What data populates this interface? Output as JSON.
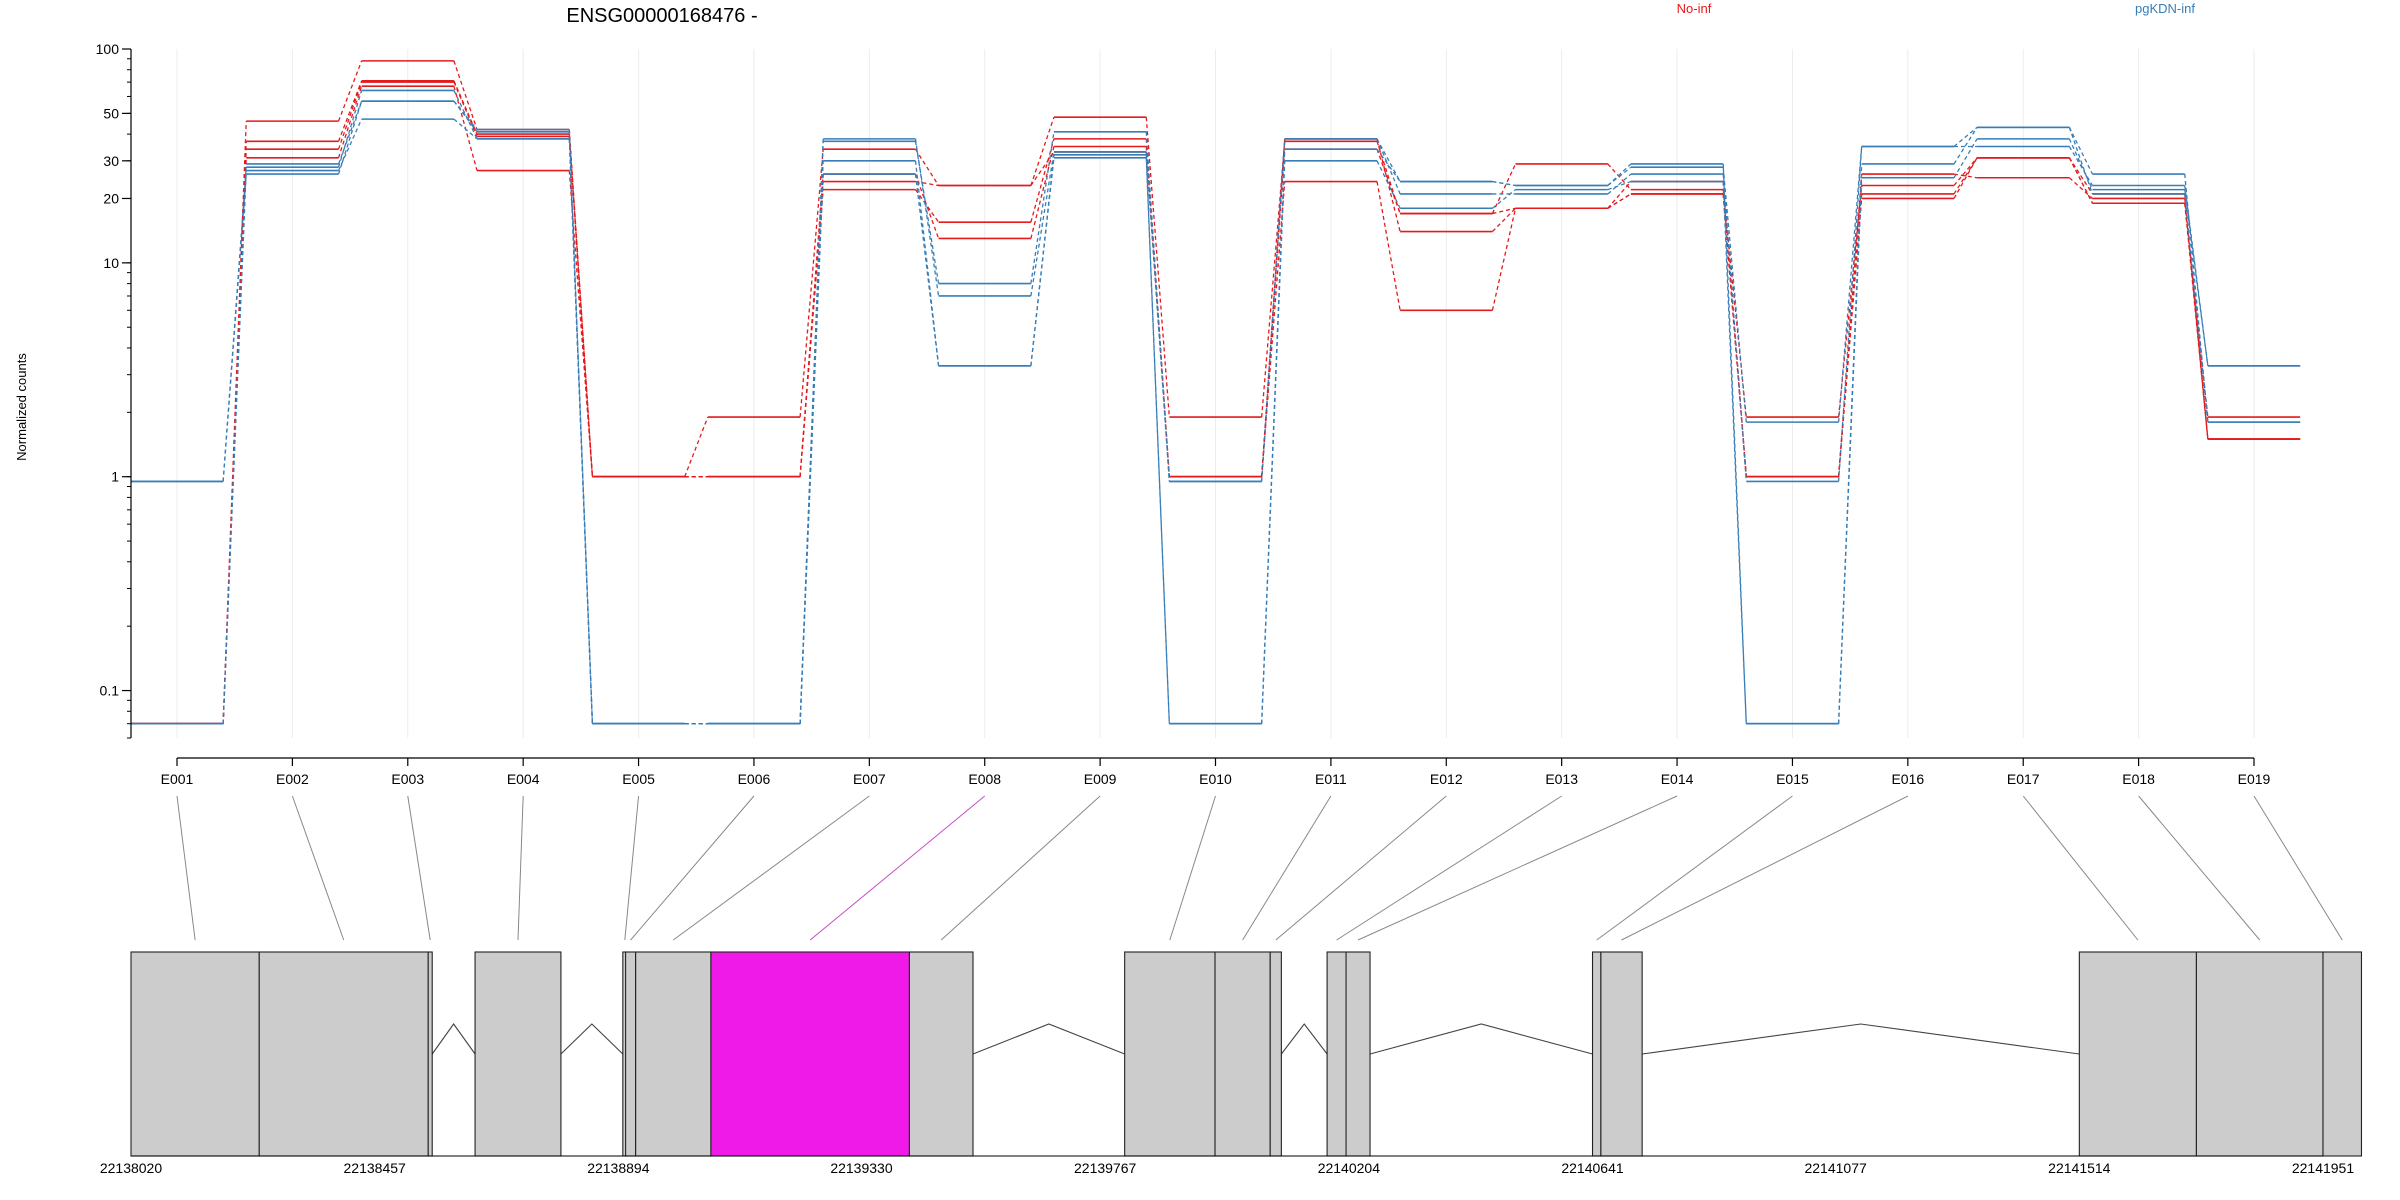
{
  "chart_data": {
    "type": "line",
    "title": "ENSG00000168476 -",
    "xlabel": "",
    "ylabel": "Normalized counts",
    "y_scale": "log",
    "ylim": [
      0.06,
      100
    ],
    "y_ticks": [
      0.1,
      1,
      10,
      20,
      30,
      50,
      100
    ],
    "y_tick_labels": [
      "0.1",
      "1",
      "10",
      "20",
      "30",
      "50",
      "100"
    ],
    "categories": [
      "E001",
      "E002",
      "E003",
      "E004",
      "E005",
      "E006",
      "E007",
      "E008",
      "E009",
      "E010",
      "E011",
      "E012",
      "E013",
      "E014",
      "E015",
      "E016",
      "E017",
      "E018",
      "E019"
    ],
    "legend": [
      {
        "name": "No-inf",
        "color": "#e41a1c"
      },
      {
        "name": "pgKDN-inf",
        "color": "#377eb8"
      }
    ],
    "legend_placement": "top-right",
    "grid": true,
    "series": [
      {
        "group": "No-inf",
        "color": "#e41a1c",
        "values": [
          0.07,
          46,
          88,
          42,
          1,
          1.9,
          34,
          23,
          48,
          1.9,
          37,
          17,
          29,
          22,
          1.9,
          23,
          31,
          19,
          1.9
        ]
      },
      {
        "group": "No-inf",
        "color": "#e41a1c",
        "values": [
          0.07,
          37,
          71,
          40,
          1,
          1,
          22,
          15.5,
          38,
          1,
          38,
          14,
          18,
          24,
          1,
          20,
          31,
          19,
          1.5
        ]
      },
      {
        "group": "No-inf",
        "color": "#e41a1c",
        "values": [
          0.07,
          34,
          70,
          39,
          1,
          1,
          26,
          13,
          35,
          1,
          24,
          6,
          18,
          21,
          1,
          26,
          25,
          20,
          1.5
        ]
      },
      {
        "group": "No-inf",
        "color": "#e41a1c",
        "values": [
          0.07,
          31,
          67,
          27,
          1,
          1,
          24,
          23,
          33,
          1,
          34,
          17,
          18,
          21,
          1,
          21,
          31,
          21,
          1.5
        ]
      },
      {
        "group": "pgKDN-inf",
        "color": "#377eb8",
        "values": [
          0.95,
          28,
          64,
          38,
          0.07,
          0.07,
          37,
          8,
          41,
          0.95,
          38,
          24,
          23,
          28,
          1.8,
          35,
          43,
          26,
          1.8
        ]
      },
      {
        "group": "pgKDN-inf",
        "color": "#377eb8",
        "values": [
          0.95,
          26,
          57,
          41,
          0.07,
          0.07,
          38,
          7,
          33,
          0.95,
          38,
          21,
          21,
          26,
          0.95,
          35,
          35,
          23,
          3.3
        ]
      },
      {
        "group": "pgKDN-inf",
        "color": "#377eb8",
        "values": [
          0.07,
          27,
          47,
          38,
          0.07,
          0.07,
          30,
          3.3,
          31,
          0.07,
          30,
          18,
          22,
          24,
          0.07,
          25,
          38,
          22,
          3.3
        ]
      },
      {
        "group": "pgKDN-inf",
        "color": "#377eb8",
        "values": [
          0.07,
          29,
          57,
          42,
          0.07,
          0.07,
          26,
          3.3,
          32,
          0.07,
          34,
          24,
          23,
          29,
          0.07,
          29,
          43,
          21,
          1.8
        ]
      }
    ],
    "gene_model": {
      "coordinate_ticks": [
        22138020,
        22138457,
        22138894,
        22139330,
        22139767,
        22140204,
        22140641,
        22141077,
        22141514,
        22141951
      ],
      "range": [
        22138020,
        22141951
      ],
      "exons": [
        {
          "id": "E001",
          "start": 22138020,
          "end": 22138250,
          "highlight": false
        },
        {
          "id": "E002",
          "start": 22138250,
          "end": 22138553,
          "highlight": false
        },
        {
          "id": "E003",
          "start": 22138553,
          "end": 22138553,
          "highlight": false
        },
        {
          "id": "E004",
          "start": 22138637,
          "end": 22138791,
          "highlight": false
        },
        {
          "id": "E005",
          "start": 22138902,
          "end": 22138907,
          "highlight": false
        },
        {
          "id": "E006",
          "start": 22138907,
          "end": 22138925,
          "highlight": false
        },
        {
          "id": "E007",
          "start": 22138925,
          "end": 22139060,
          "highlight": false
        },
        {
          "id": "E008",
          "start": 22139060,
          "end": 22139416,
          "highlight": true
        },
        {
          "id": "E009",
          "start": 22139416,
          "end": 22139530,
          "highlight": false
        },
        {
          "id": "E010",
          "start": 22139802,
          "end": 22139964,
          "highlight": false
        },
        {
          "id": "E011",
          "start": 22139964,
          "end": 22140063,
          "highlight": false
        },
        {
          "id": "E012",
          "start": 22140063,
          "end": 22140083,
          "highlight": false
        },
        {
          "id": "E013",
          "start": 22140165,
          "end": 22140199,
          "highlight": false
        },
        {
          "id": "E014",
          "start": 22140199,
          "end": 22140242,
          "highlight": false
        },
        {
          "id": "E015",
          "start": 22140641,
          "end": 22140656,
          "highlight": false
        },
        {
          "id": "E016",
          "start": 22140656,
          "end": 22140730,
          "highlight": false
        },
        {
          "id": "E017",
          "start": 22141514,
          "end": 22141724,
          "highlight": false
        },
        {
          "id": "E018",
          "start": 22141724,
          "end": 22141951,
          "highlight": false
        },
        {
          "id": "E019",
          "start": 22141951,
          "end": 22142020,
          "highlight": false
        }
      ]
    }
  },
  "colors": {
    "no_inf": "#e41a1c",
    "pgkdn_inf": "#377eb8",
    "highlight_exon": "#f01ae8",
    "exon": "#cccccc"
  }
}
